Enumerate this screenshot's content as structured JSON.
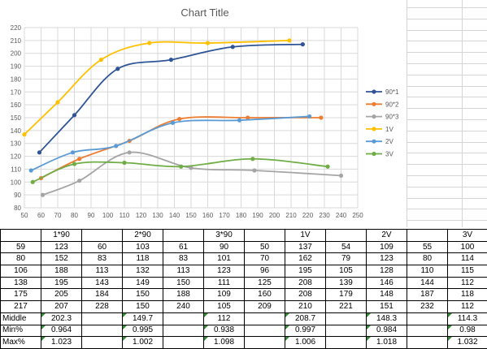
{
  "chart_data": {
    "type": "scatter",
    "title": "Chart Title",
    "xlim": [
      50,
      250
    ],
    "ylim": [
      80,
      220
    ],
    "x_ticks": [
      50,
      60,
      70,
      80,
      90,
      100,
      110,
      120,
      130,
      140,
      150,
      160,
      170,
      180,
      190,
      200,
      210,
      220,
      230,
      240,
      250
    ],
    "y_ticks": [
      80,
      90,
      100,
      110,
      120,
      130,
      140,
      150,
      160,
      170,
      180,
      190,
      200,
      210,
      220
    ],
    "grid": true,
    "smooth": true,
    "legend_position": "right",
    "series": [
      {
        "name": "90*1",
        "color": "#2f5597",
        "x": [
          59,
          80,
          106,
          138,
          175,
          217
        ],
        "y": [
          123,
          152,
          188,
          195,
          205,
          207
        ]
      },
      {
        "name": "90*2",
        "color": "#ed7d31",
        "x": [
          60,
          83,
          113,
          143,
          184,
          228
        ],
        "y": [
          103,
          118,
          132,
          149,
          150,
          150
        ]
      },
      {
        "name": "90*3",
        "color": "#a5a5a5",
        "x": [
          61,
          83,
          113,
          150,
          188,
          240
        ],
        "y": [
          90,
          101,
          123,
          111,
          109,
          105
        ]
      },
      {
        "name": "1V",
        "color": "#ffc000",
        "x": [
          50,
          70,
          96,
          125,
          160,
          209
        ],
        "y": [
          137,
          162,
          195,
          208,
          208,
          210
        ]
      },
      {
        "name": "2V",
        "color": "#5b9bd5",
        "x": [
          54,
          79,
          105,
          139,
          179,
          221
        ],
        "y": [
          109,
          123,
          128,
          146,
          148,
          151
        ]
      },
      {
        "name": "3V",
        "color": "#70ad47",
        "x": [
          55,
          80,
          110,
          144,
          187,
          232
        ],
        "y": [
          100,
          114,
          115,
          112,
          118,
          112
        ]
      }
    ]
  },
  "table": {
    "header": [
      "",
      "1*90",
      "",
      "2*90",
      "",
      "3*90",
      "",
      "1V",
      "",
      "2V",
      "",
      "3V"
    ],
    "rows": [
      [
        "59",
        "123",
        "60",
        "103",
        "61",
        "90",
        "50",
        "137",
        "54",
        "109",
        "55",
        "100"
      ],
      [
        "80",
        "152",
        "83",
        "118",
        "83",
        "101",
        "70",
        "162",
        "79",
        "123",
        "80",
        "114"
      ],
      [
        "106",
        "188",
        "113",
        "132",
        "113",
        "123",
        "96",
        "195",
        "105",
        "128",
        "110",
        "115"
      ],
      [
        "138",
        "195",
        "143",
        "149",
        "150",
        "111",
        "125",
        "208",
        "139",
        "146",
        "144",
        "112"
      ],
      [
        "175",
        "205",
        "184",
        "150",
        "188",
        "109",
        "160",
        "208",
        "179",
        "148",
        "187",
        "118"
      ],
      [
        "217",
        "207",
        "228",
        "150",
        "240",
        "105",
        "209",
        "210",
        "221",
        "151",
        "232",
        "112"
      ]
    ],
    "summary": [
      {
        "label": "Middle",
        "vals": [
          "202.3",
          "149.7",
          "112",
          "208.7",
          "148.3",
          "114.3"
        ]
      },
      {
        "label": "Min%",
        "vals": [
          "0.964",
          "0.995",
          "0.938",
          "0.997",
          "0.984",
          "0.98"
        ]
      },
      {
        "label": "Max%",
        "vals": [
          "1.023",
          "1.002",
          "1.098",
          "1.006",
          "1.018",
          "1.032"
        ]
      }
    ]
  }
}
